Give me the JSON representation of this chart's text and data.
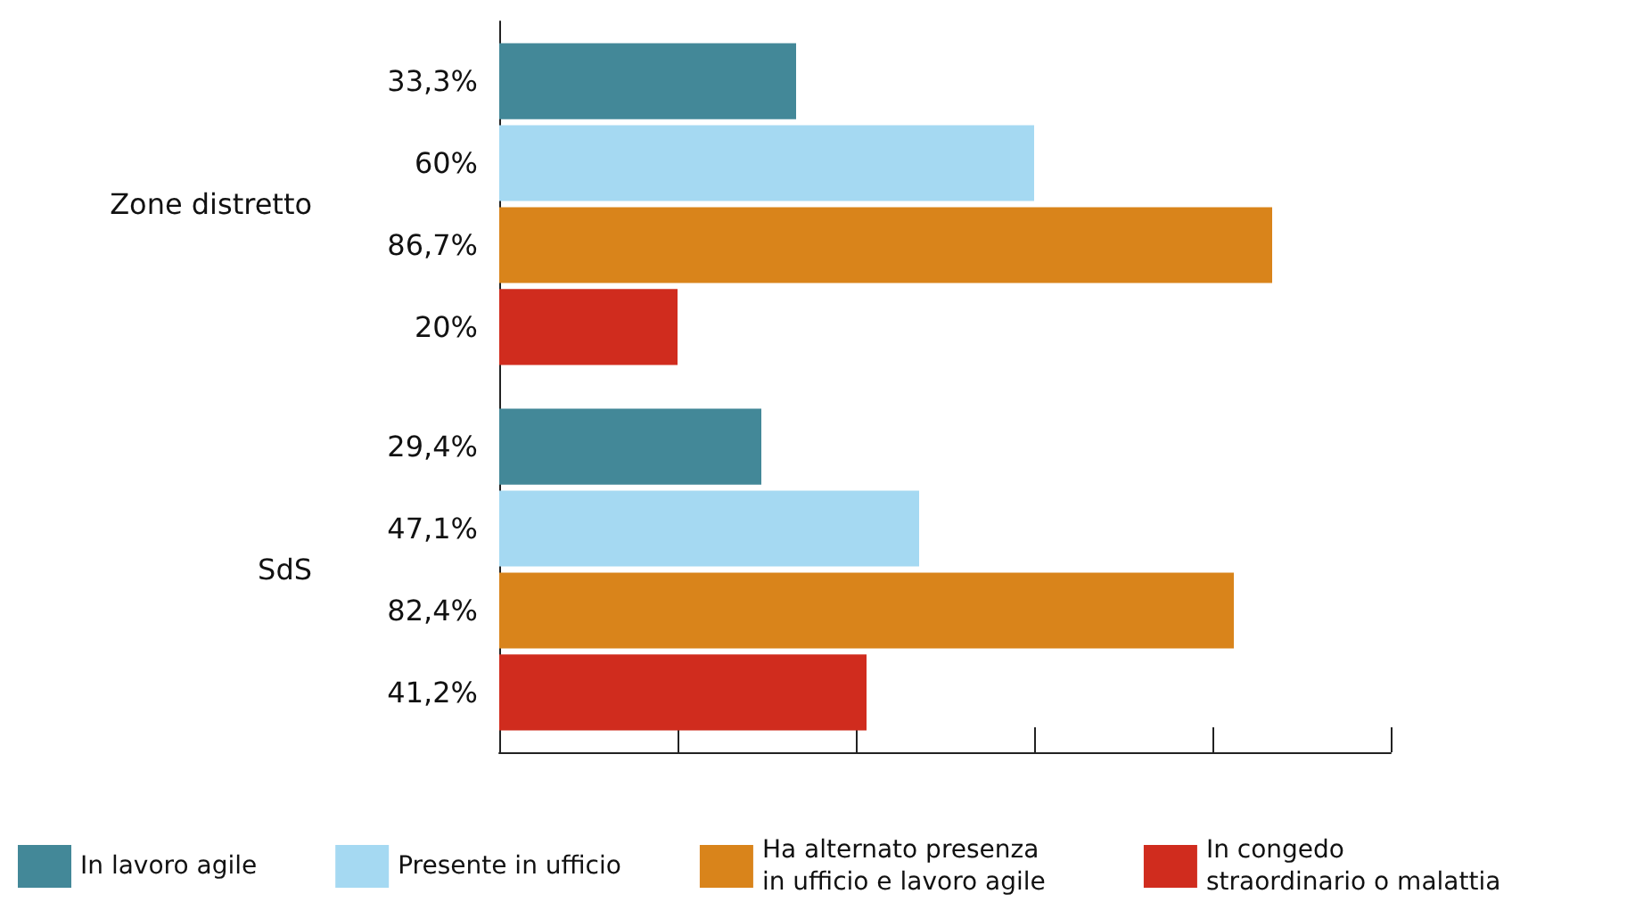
{
  "chart_data": {
    "type": "bar",
    "orientation": "horizontal",
    "categories": [
      "Zone distretto",
      "SdS"
    ],
    "series": [
      {
        "name": "In lavoro agile",
        "color": "#438898",
        "values": [
          33.3,
          29.4
        ],
        "value_labels": [
          "33,3%",
          "29,4%"
        ]
      },
      {
        "name": "Presente in ufficio",
        "color": "#a5d9f2",
        "values": [
          60,
          47.1
        ],
        "value_labels": [
          "60%",
          "47,1%"
        ]
      },
      {
        "name": "Ha alternato presenza in ufficio e lavoro agile",
        "color": "#d9841b",
        "values": [
          86.7,
          82.4
        ],
        "value_labels": [
          "86,7%",
          "82,4%"
        ]
      },
      {
        "name": "In congedo straordinario o malattia",
        "color": "#d02c1e",
        "values": [
          20,
          41.2
        ],
        "value_labels": [
          "20%",
          "41,2%"
        ]
      }
    ],
    "xlim": [
      0,
      100
    ],
    "xticks": [
      {
        "value": 0,
        "label": null
      },
      {
        "value": 20,
        "label": null
      },
      {
        "value": 40,
        "label": null
      },
      {
        "value": 60,
        "label": null
      },
      {
        "value": 80,
        "label": null
      },
      {
        "value": 100,
        "label": null
      }
    ],
    "grid": false,
    "legend": "bottom"
  }
}
